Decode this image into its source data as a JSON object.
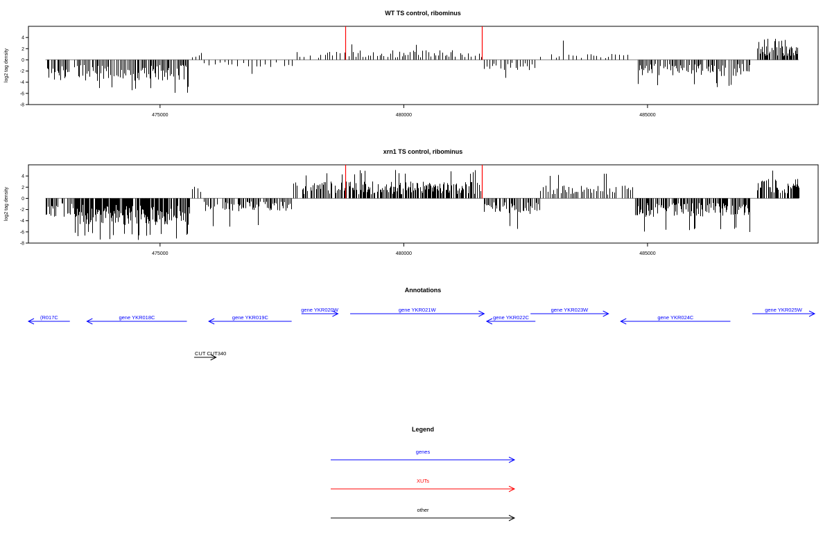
{
  "chart_data": [
    {
      "type": "bar",
      "title": "WT TS control, ribominus",
      "xlabel": "",
      "ylabel": "log2 tag density",
      "xlim": [
        472300,
        488500
      ],
      "ylim": [
        -8,
        6
      ],
      "x_ticks": [
        475000,
        480000,
        485000
      ],
      "x_tick_labels": [
        "475000",
        "480000",
        "485000"
      ],
      "y_ticks": [
        4,
        2,
        0,
        -2,
        -4,
        -6,
        -8
      ],
      "y_tick_labels": [
        "4",
        "2",
        "0",
        "-2",
        "-4",
        "-6",
        "-8"
      ],
      "xut_markers": [
        478800,
        481600
      ],
      "segments": [
        {
          "from": 472650,
          "to": 475600,
          "sign": -1,
          "mean": 2.6,
          "max": 6.0,
          "step": 25
        },
        {
          "from": 475650,
          "to": 475850,
          "sign": 1,
          "mean": 1.0,
          "max": 2.0,
          "step": 60
        },
        {
          "from": 475900,
          "to": 477800,
          "sign": -1,
          "mean": 0.9,
          "max": 3.0,
          "step": 90
        },
        {
          "from": 477800,
          "to": 478950,
          "sign": 1,
          "mean": 1.0,
          "max": 3.0,
          "step": 70
        },
        {
          "from": 478950,
          "to": 481600,
          "sign": 1,
          "mean": 1.2,
          "max": 3.0,
          "step": 45
        },
        {
          "from": 481650,
          "to": 482700,
          "sign": -1,
          "mean": 1.3,
          "max": 3.5,
          "step": 45
        },
        {
          "from": 482700,
          "to": 484600,
          "sign": 1,
          "mean": 0.8,
          "max": 3.5,
          "step": 80
        },
        {
          "from": 484800,
          "to": 487100,
          "sign": -1,
          "mean": 2.0,
          "max": 5.0,
          "step": 25
        },
        {
          "from": 487250,
          "to": 488100,
          "sign": 1,
          "mean": 1.7,
          "max": 4.0,
          "step": 20
        }
      ]
    },
    {
      "type": "bar",
      "title": "xrn1 TS control, ribominus",
      "xlabel": "",
      "ylabel": "log2 tag density",
      "xlim": [
        472300,
        488500
      ],
      "ylim": [
        -8,
        6
      ],
      "x_ticks": [
        475000,
        480000,
        485000
      ],
      "x_tick_labels": [
        "475000",
        "480000",
        "485000"
      ],
      "y_ticks": [
        4,
        2,
        0,
        -2,
        -4,
        -6,
        -8
      ],
      "y_tick_labels": [
        "4",
        "2",
        "0",
        "-2",
        "-4",
        "-6",
        "-8"
      ],
      "xut_markers": [
        478800,
        481600
      ],
      "segments": [
        {
          "from": 472650,
          "to": 473300,
          "sign": -1,
          "mean": 2.5,
          "max": 7.0,
          "step": 20
        },
        {
          "from": 473300,
          "to": 475600,
          "sign": -1,
          "mean": 3.3,
          "max": 7.5,
          "step": 12
        },
        {
          "from": 475650,
          "to": 475850,
          "sign": 1,
          "mean": 2.0,
          "max": 3.0,
          "step": 60
        },
        {
          "from": 475900,
          "to": 477700,
          "sign": -1,
          "mean": 1.6,
          "max": 5.5,
          "step": 25
        },
        {
          "from": 477700,
          "to": 478950,
          "sign": 1,
          "mean": 2.1,
          "max": 4.8,
          "step": 25
        },
        {
          "from": 478950,
          "to": 481600,
          "sign": 1,
          "mean": 2.1,
          "max": 5.2,
          "step": 18
        },
        {
          "from": 481650,
          "to": 482800,
          "sign": -1,
          "mean": 2.0,
          "max": 6.0,
          "step": 25
        },
        {
          "from": 482800,
          "to": 484700,
          "sign": 1,
          "mean": 1.6,
          "max": 4.5,
          "step": 40
        },
        {
          "from": 484750,
          "to": 487100,
          "sign": -1,
          "mean": 2.3,
          "max": 6.5,
          "step": 18
        },
        {
          "from": 487250,
          "to": 488100,
          "sign": 1,
          "mean": 2.4,
          "max": 5.0,
          "step": 18
        }
      ]
    }
  ],
  "annotations": {
    "title": "Annotations",
    "features": [
      {
        "label": "(R017C",
        "start": 472300,
        "end": 473150,
        "strand": "-",
        "row": 0,
        "type": "gene"
      },
      {
        "label": "gene YKR018C",
        "start": 473500,
        "end": 475550,
        "strand": "-",
        "row": 0,
        "type": "gene"
      },
      {
        "label": "gene YKR019C",
        "start": 476000,
        "end": 477700,
        "strand": "-",
        "row": 0,
        "type": "gene"
      },
      {
        "label": "gene YKR020W",
        "start": 477900,
        "end": 478650,
        "strand": "+",
        "row": 1,
        "type": "gene"
      },
      {
        "label": "gene YKR021W",
        "start": 478900,
        "end": 481650,
        "strand": "+",
        "row": 1,
        "type": "gene"
      },
      {
        "label": "gene YKR022C",
        "start": 481700,
        "end": 482700,
        "strand": "-",
        "row": 0,
        "type": "gene"
      },
      {
        "label": "gene YKR023W",
        "start": 482600,
        "end": 484200,
        "strand": "+",
        "row": 1,
        "type": "gene"
      },
      {
        "label": "gene YKR024C",
        "start": 484450,
        "end": 486700,
        "strand": "-",
        "row": 0,
        "type": "gene"
      },
      {
        "label": "gene YKR025W",
        "start": 487150,
        "end": 488500,
        "strand": "+",
        "row": 1,
        "type": "gene"
      },
      {
        "label": "CUT CUT340",
        "start": 475700,
        "end": 476150,
        "strand": "+",
        "row": 2,
        "type": "other"
      }
    ]
  },
  "legend": {
    "title": "Legend",
    "items": [
      {
        "label": "genes",
        "color": "#0000ff"
      },
      {
        "label": "XUTs",
        "color": "#ff0000"
      },
      {
        "label": "other",
        "color": "#000000"
      }
    ]
  },
  "colors": {
    "gene": "#0000ff",
    "xut": "#ff0000",
    "other": "#000000",
    "bar": "#000000",
    "frame": "#000000"
  }
}
